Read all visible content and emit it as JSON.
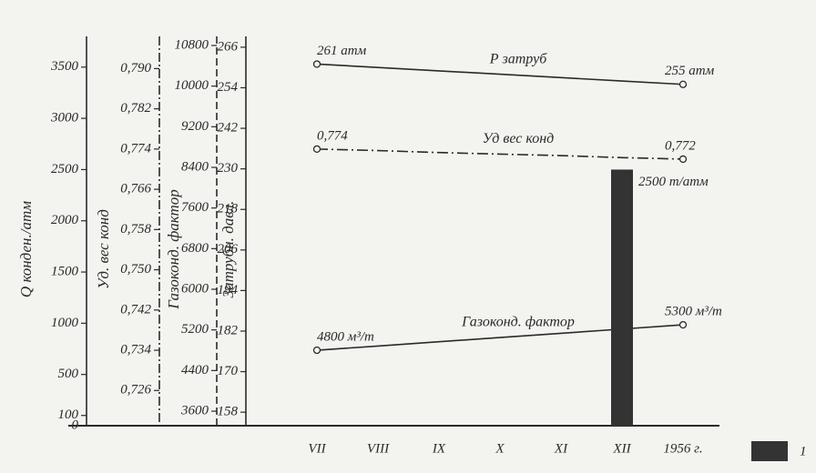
{
  "chart_data": {
    "type": "line",
    "categories": [
      "VII",
      "VIII",
      "IX",
      "X",
      "XI",
      "XII",
      "1956 г."
    ],
    "ylabel": "Q конден./атм",
    "ylim": [
      0,
      3800
    ],
    "yticks": [
      0,
      100,
      500,
      1000,
      1500,
      2000,
      2500,
      3000,
      3500
    ],
    "y2label": "Уд. вес конд",
    "y2lim": [
      0.719,
      0.7964
    ],
    "y2ticks": [
      {
        "value": 0.726,
        "label": "0,726"
      },
      {
        "value": 0.734,
        "label": "0,734"
      },
      {
        "value": 0.742,
        "label": "0,742"
      },
      {
        "value": 0.75,
        "label": "0,750"
      },
      {
        "value": 0.758,
        "label": "0,758"
      },
      {
        "value": 0.766,
        "label": "0,766"
      },
      {
        "value": 0.774,
        "label": "0,774"
      },
      {
        "value": 0.782,
        "label": "0,782"
      },
      {
        "value": 0.79,
        "label": "0,790"
      }
    ],
    "y3label": "Газоконд. фактор",
    "y3lim": [
      3314,
      10979
    ],
    "y3ticks": [
      3600,
      4400,
      5200,
      6000,
      6800,
      7600,
      8400,
      9200,
      10000,
      10800
    ],
    "y4label": "Затрубн. давл.",
    "y4lim": [
      154,
      269.2
    ],
    "y4ticks": [
      158,
      170,
      182,
      194,
      206,
      218,
      230,
      242,
      254,
      266
    ],
    "series": [
      {
        "name": "Р затруб",
        "type": "line",
        "axis": "y4",
        "color": "#2a2a2a",
        "style": "solid",
        "values": [
          261,
          260,
          259,
          258,
          257,
          256,
          255
        ],
        "value_labels": [
          "261 атм",
          null,
          null,
          null,
          null,
          null,
          "255 атм"
        ]
      },
      {
        "name": "Уд вес конд",
        "type": "line",
        "axis": "y2",
        "color": "#2a2a2a",
        "style": "dashdot",
        "values": [
          0.774,
          0.7737,
          0.7733,
          0.773,
          0.7727,
          0.7723,
          0.772
        ],
        "value_labels": [
          "0,774",
          null,
          null,
          null,
          null,
          null,
          "0,772"
        ]
      },
      {
        "name": "Газоконд. фактор",
        "type": "line",
        "axis": "y3",
        "color": "#2a2a2a",
        "style": "solid",
        "values": [
          4800,
          4883,
          4967,
          5050,
          5133,
          5217,
          5300
        ],
        "value_labels": [
          "4800 м³/т",
          null,
          null,
          null,
          null,
          null,
          "5300 м³/т"
        ]
      },
      {
        "name": "1",
        "type": "bar",
        "axis": "y",
        "color": "#333333",
        "values": [
          null,
          null,
          null,
          null,
          null,
          2500,
          null
        ],
        "value_labels": [
          null,
          null,
          null,
          null,
          null,
          "2500 т/атм",
          null
        ]
      }
    ]
  }
}
